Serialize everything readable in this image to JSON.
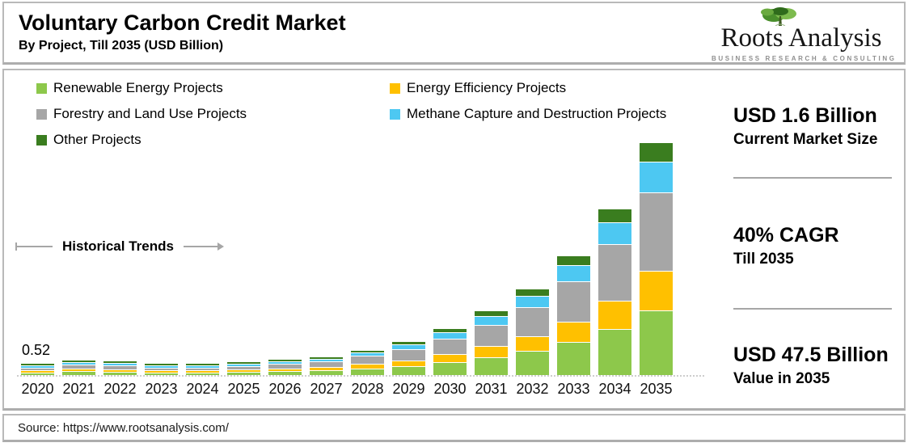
{
  "header": {
    "title": "Voluntary Carbon Credit Market",
    "subtitle": "By Project, Till 2035 (USD Billion)",
    "logo": {
      "name": "Roots Analysis",
      "tagline": "BUSINESS RESEARCH & CONSULTING"
    }
  },
  "legend": [
    {
      "label": "Renewable Energy Projects",
      "color": "#8DC84B"
    },
    {
      "label": "Energy Efficiency Projects",
      "color": "#FFC000"
    },
    {
      "label": "Forestry and Land Use Projects",
      "color": "#A6A6A6"
    },
    {
      "label": "Methane Capture and Destruction Projects",
      "color": "#4DC8F2"
    },
    {
      "label": "Other Projects",
      "color": "#3A7D1F"
    }
  ],
  "annotations": {
    "historical_trends": "Historical Trends",
    "first_bar_label": "0.52"
  },
  "stats": [
    {
      "value": "USD 1.6 Billion",
      "caption": "Current Market Size"
    },
    {
      "value": "40% CAGR",
      "caption": "Till 2035"
    },
    {
      "value": "USD 47.5 Billion",
      "caption": "Value in 2035"
    }
  ],
  "source": "Source: https://www.rootsanalysis.com/",
  "colors": {
    "box_border": "#B9B9B9",
    "divider": "#A6A6A6",
    "baseline": "#CDCDCD",
    "annotation_gray": "#A6A6A6",
    "logo_green_dark": "#2F6B1C",
    "logo_green_mid": "#4A8F2C",
    "logo_green_light": "#7DBB4E"
  },
  "chart_data": {
    "type": "bar",
    "stacked": true,
    "title": "Voluntary Carbon Credit Market",
    "subtitle": "By Project, Till 2035 (USD Billion)",
    "unit": "USD Billion",
    "legend_position": "top-left",
    "axes": {
      "x_visible": true,
      "y_visible": false,
      "gridlines": false
    },
    "categories": [
      "2020",
      "2021",
      "2022",
      "2023",
      "2024",
      "2025",
      "2026",
      "2027",
      "2028",
      "2029",
      "2030",
      "2031",
      "2032",
      "2033",
      "2034",
      "2035"
    ],
    "series": [
      {
        "name": "Renewable Energy Projects",
        "color": "#8DC84B",
        "values": [
          0.15,
          0.59,
          0.53,
          0.2,
          0.22,
          0.45,
          0.64,
          0.9,
          1.26,
          1.76,
          2.46,
          3.47,
          4.84,
          6.78,
          9.49,
          13.3
        ]
      },
      {
        "name": "Energy Efficiency Projects",
        "color": "#FFC000",
        "values": [
          0.09,
          0.36,
          0.32,
          0.12,
          0.14,
          0.27,
          0.39,
          0.54,
          0.77,
          1.07,
          1.5,
          2.11,
          2.94,
          4.11,
          5.76,
          8.08
        ]
      },
      {
        "name": "Forestry and Land Use Projects",
        "color": "#A6A6A6",
        "values": [
          0.17,
          0.71,
          0.65,
          0.25,
          0.27,
          0.54,
          0.78,
          1.09,
          1.53,
          2.14,
          2.99,
          4.22,
          5.88,
          8.23,
          11.53,
          16.15
        ]
      },
      {
        "name": "Methane Capture and Destruction Projects",
        "color": "#4DC8F2",
        "values": [
          0.07,
          0.27,
          0.25,
          0.09,
          0.1,
          0.21,
          0.3,
          0.42,
          0.58,
          0.82,
          1.14,
          1.61,
          2.25,
          3.15,
          4.41,
          6.18
        ]
      },
      {
        "name": "Other Projects",
        "color": "#3A7D1F",
        "values": [
          0.04,
          0.17,
          0.15,
          0.06,
          0.07,
          0.13,
          0.19,
          0.25,
          0.36,
          0.51,
          0.71,
          0.99,
          1.39,
          1.93,
          2.71,
          3.8
        ]
      }
    ],
    "totals": [
      0.52,
      2.1,
      1.9,
      0.72,
      0.8,
      1.6,
      2.3,
      3.2,
      4.5,
      6.3,
      8.8,
      12.4,
      17.3,
      24.2,
      33.9,
      47.5
    ],
    "data_labels": {
      "2020": "0.52"
    },
    "key_figures": {
      "current_market_size_usd_billion": 1.6,
      "cagr_percent_till_2035": 40,
      "value_2035_usd_billion": 47.5
    }
  }
}
